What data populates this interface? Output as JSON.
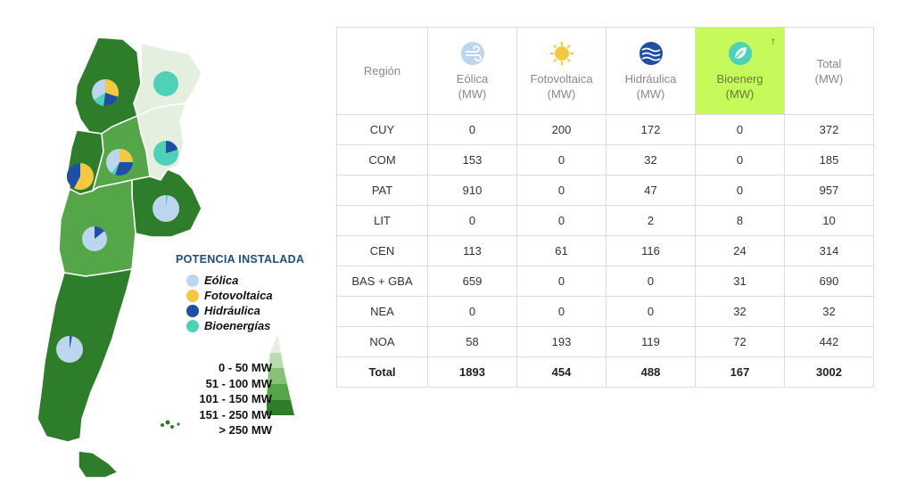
{
  "map": {
    "legend_title": "POTENCIA INSTALADA",
    "legend_items": [
      {
        "label": "Eólica",
        "icon": "wind-icon",
        "color": "#bcd6f0"
      },
      {
        "label": "Fotovoltaica",
        "icon": "sun-icon",
        "color": "#f5c842"
      },
      {
        "label": "Hidráulica",
        "icon": "water-icon",
        "color": "#1f4fa3"
      },
      {
        "label": "Bioenergías",
        "icon": "leaf-icon",
        "color": "#4fd1b8"
      }
    ],
    "scale_labels": [
      "0 - 50 MW",
      "51 - 100 MW",
      "101 - 150 MW",
      "151 - 250 MW",
      "> 250 MW"
    ],
    "scale_colors": [
      "#e4efe0",
      "#b8dbb0",
      "#86c27a",
      "#55a648",
      "#2e7d2a"
    ]
  },
  "table": {
    "headers": [
      {
        "label": "Región",
        "unit": "",
        "icon": ""
      },
      {
        "label": "Eólica",
        "unit": "(MW)",
        "icon": "wind-icon"
      },
      {
        "label": "Fotovoltaica",
        "unit": "(MW)",
        "icon": "sun-icon"
      },
      {
        "label": "Hidráulica",
        "unit": "(MW)",
        "icon": "water-icon"
      },
      {
        "label": "Bioenerg",
        "unit": "(MW)",
        "icon": "leaf-icon",
        "sort_indicator": "↑"
      },
      {
        "label": "Total",
        "unit": "(MW)",
        "icon": ""
      }
    ],
    "rows": [
      [
        "CUY",
        "0",
        "200",
        "172",
        "0",
        "372"
      ],
      [
        "COM",
        "153",
        "0",
        "32",
        "0",
        "185"
      ],
      [
        "PAT",
        "910",
        "0",
        "47",
        "0",
        "957"
      ],
      [
        "LIT",
        "0",
        "0",
        "2",
        "8",
        "10"
      ],
      [
        "CEN",
        "113",
        "61",
        "116",
        "24",
        "314"
      ],
      [
        "BAS + GBA",
        "659",
        "0",
        "0",
        "31",
        "690"
      ],
      [
        "NEA",
        "0",
        "0",
        "0",
        "32",
        "32"
      ],
      [
        "NOA",
        "58",
        "193",
        "119",
        "72",
        "442"
      ]
    ],
    "total_row": [
      "Total",
      "1893",
      "454",
      "488",
      "167",
      "3002"
    ],
    "highlight_color": "#c6f95a"
  }
}
